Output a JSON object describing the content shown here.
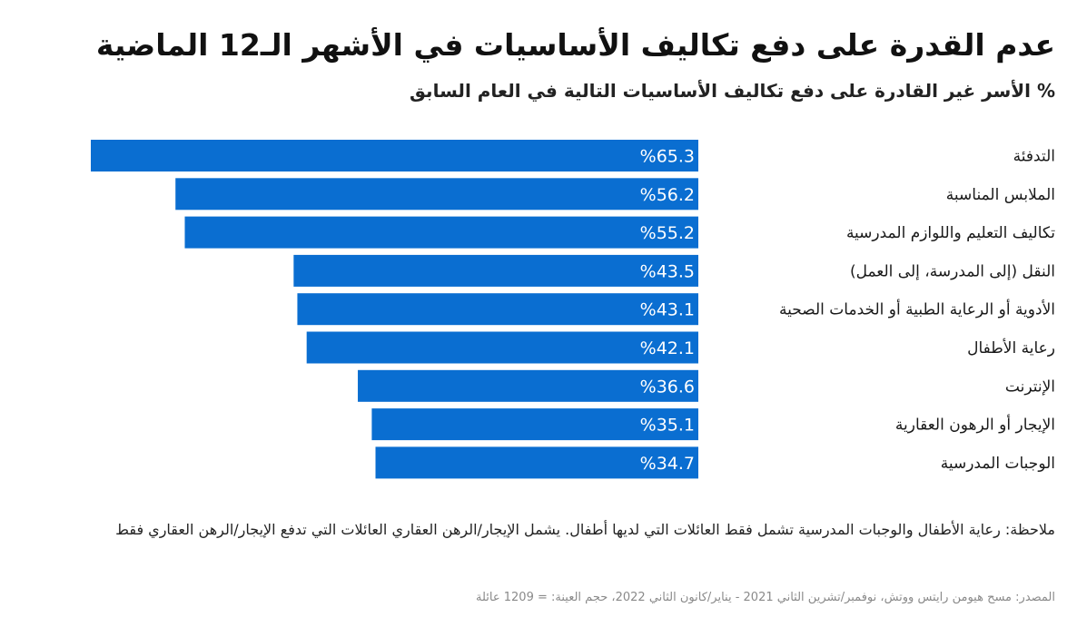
{
  "title": "عدم القدرة على دفع تكاليف الأساسيات في الأشهر الـ12 الماضية",
  "subtitle": "% الأسر غير القادرة على دفع تكاليف الأساسيات التالية في العام السابق",
  "note": "ملاحظة: رعاية الأطفال والوجبات المدرسية تشمل فقط العائلات التي لديها أطفال. يشمل الإيجار/الرهن العقاري العائلات التي تدفع الإيجار/الرهن العقاري فقط",
  "source": "المصدر: مسح هيومن رايتس ووتش، نوفمبر/تشرين الثاني 2021 - يناير/كانون الثاني 2022، حجم العينة: = 1209 عائلة",
  "colors": {
    "bar": "#0a6ed1",
    "bar_label": "#ffffff"
  },
  "chart_data": {
    "type": "bar",
    "orientation": "horizontal",
    "categories": [
      "التدفئة",
      "الملابس المناسبة",
      "تكاليف التعليم واللوازم المدرسية",
      "النقل (إلى المدرسة، إلى العمل)",
      "الأدوية أو الرعاية الطبية أو الخدمات الصحية",
      "رعاية الأطفال",
      "الإنترنت",
      "الإيجار أو الرهون العقارية",
      "الوجبات المدرسية"
    ],
    "values": [
      65.3,
      56.2,
      55.2,
      43.5,
      43.1,
      42.1,
      36.6,
      35.1,
      34.7
    ],
    "value_labels": [
      "%65.3",
      "%56.2",
      "%55.2",
      "%43.5",
      "%43.1",
      "%42.1",
      "%36.6",
      "%35.1",
      "%34.7"
    ],
    "xlim": [
      0,
      65.3
    ],
    "grid": false,
    "legend": "none"
  }
}
